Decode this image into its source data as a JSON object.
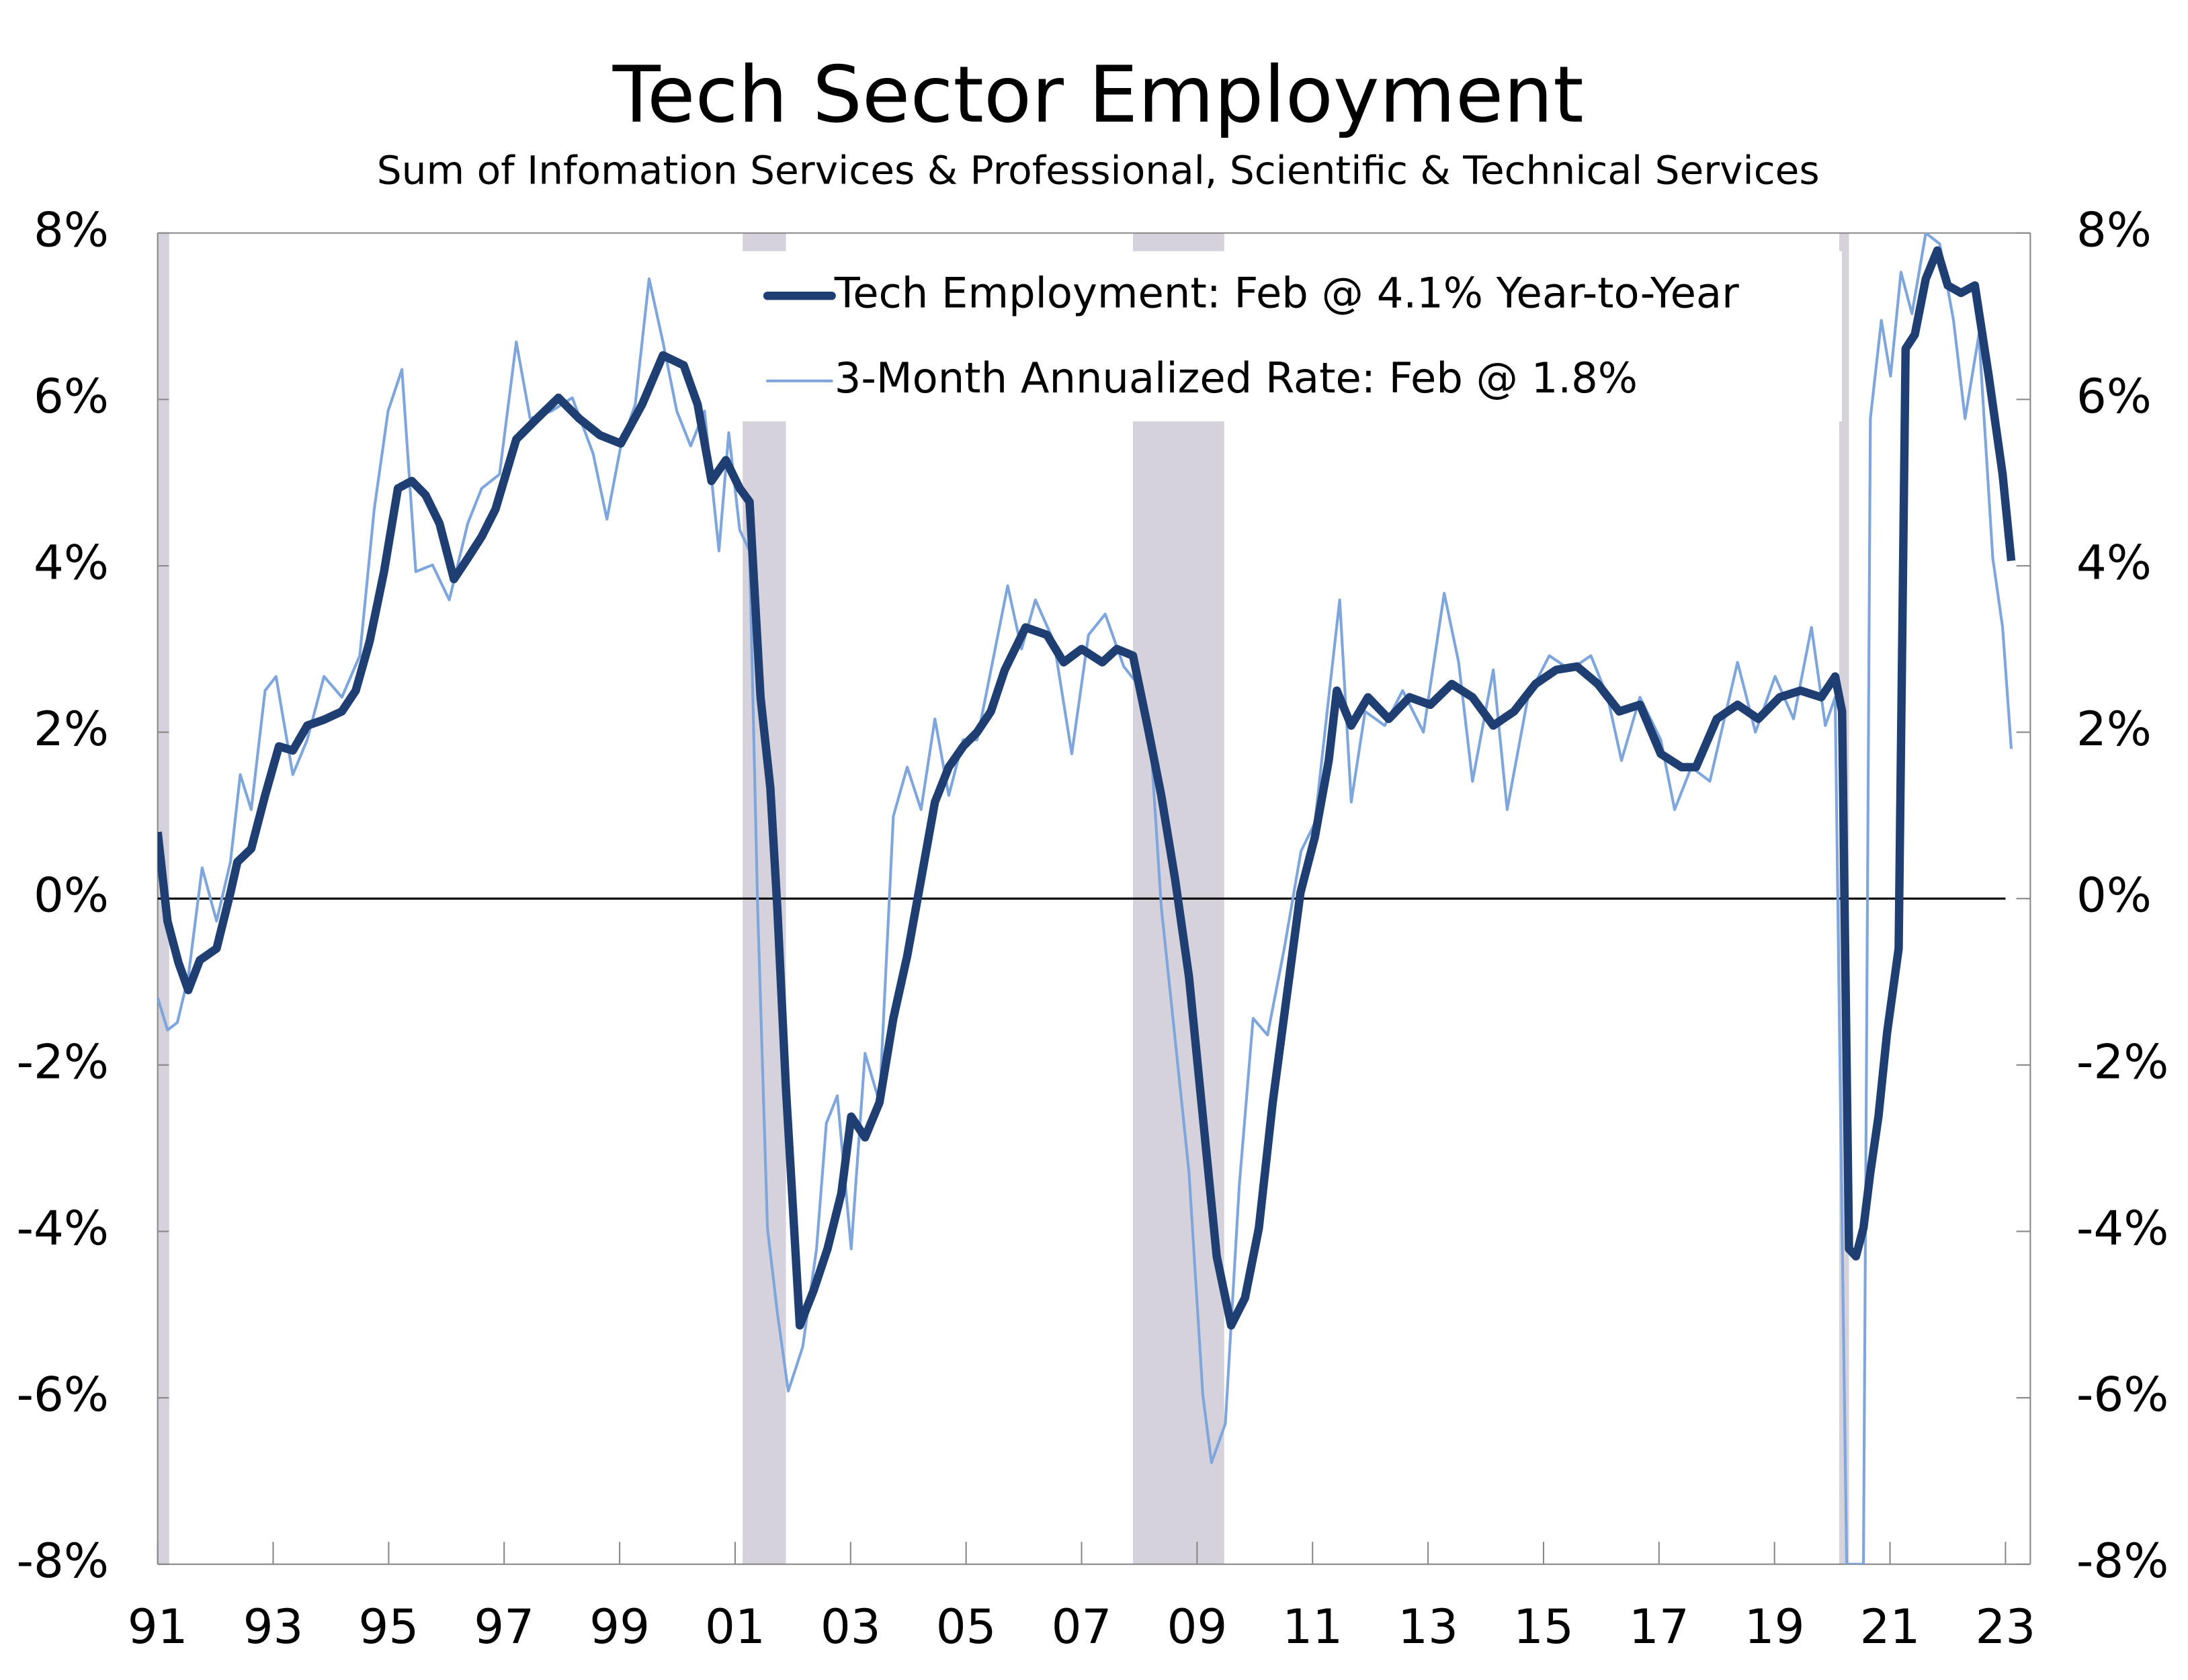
{
  "chart_data": {
    "type": "line",
    "title": "Tech Sector Employment",
    "subtitle": "Sum of Infomation Services & Professional, Scientific & Technical Services",
    "xlim": [
      1991,
      2023.43
    ],
    "xticks": [
      {
        "value": 1991,
        "label": "91"
      },
      {
        "value": 1993,
        "label": "93"
      },
      {
        "value": 1995,
        "label": "95"
      },
      {
        "value": 1997,
        "label": "97"
      },
      {
        "value": 1999,
        "label": "99"
      },
      {
        "value": 2001,
        "label": "01"
      },
      {
        "value": 2003,
        "label": "03"
      },
      {
        "value": 2005,
        "label": "05"
      },
      {
        "value": 2007,
        "label": "07"
      },
      {
        "value": 2009,
        "label": "09"
      },
      {
        "value": 2011,
        "label": "11"
      },
      {
        "value": 2013,
        "label": "13"
      },
      {
        "value": 2015,
        "label": "15"
      },
      {
        "value": 2017,
        "label": "17"
      },
      {
        "value": 2019,
        "label": "19"
      },
      {
        "value": 2021,
        "label": "21"
      },
      {
        "value": 2023,
        "label": "23"
      }
    ],
    "ylim": [
      -8,
      8
    ],
    "yticks": [
      {
        "value": -8,
        "label": "-8%"
      },
      {
        "value": -6,
        "label": "-6%"
      },
      {
        "value": -4,
        "label": "-4%"
      },
      {
        "value": -2,
        "label": "-2%"
      },
      {
        "value": 0,
        "label": "0%"
      },
      {
        "value": 2,
        "label": "2%"
      },
      {
        "value": 4,
        "label": "4%"
      },
      {
        "value": 6,
        "label": "6%"
      },
      {
        "value": 8,
        "label": "8%"
      }
    ],
    "y2lim": [
      -8,
      8
    ],
    "y2ticks": [
      {
        "value": -8,
        "label": "-8%"
      },
      {
        "value": -6,
        "label": "-6%"
      },
      {
        "value": -4,
        "label": "-4%"
      },
      {
        "value": -2,
        "label": "-2%"
      },
      {
        "value": 0,
        "label": "0%"
      },
      {
        "value": 2,
        "label": "2%"
      },
      {
        "value": 4,
        "label": "4%"
      },
      {
        "value": 6,
        "label": "6%"
      },
      {
        "value": 8,
        "label": "8%"
      }
    ],
    "recessions": [
      [
        1991.0,
        1991.2
      ],
      [
        2001.13,
        2001.88
      ],
      [
        2007.89,
        2009.47
      ],
      [
        2020.12,
        2020.29
      ]
    ],
    "recession_color": "#d6d2dc",
    "legend": "top-right",
    "series": [
      {
        "name": "Tech Employment: Feb @ 4.1% Year-to-Year",
        "color": "#1f3f73",
        "width": 6,
        "x": [
          1991.0,
          1991.17,
          1991.36,
          1991.53,
          1991.73,
          1992.02,
          1992.26,
          1992.38,
          1992.62,
          1992.86,
          1993.1,
          1993.34,
          1993.59,
          1993.88,
          1994.19,
          1994.43,
          1994.67,
          1994.92,
          1995.16,
          1995.4,
          1995.64,
          1995.88,
          1996.13,
          1996.37,
          1996.61,
          1996.85,
          1997.21,
          1997.57,
          1997.94,
          1998.3,
          1998.66,
          1999.02,
          1999.39,
          1999.75,
          2000.11,
          2000.35,
          2000.59,
          2000.84,
          2001.08,
          2001.25,
          2001.44,
          2001.61,
          2001.73,
          2001.88,
          2002.12,
          2002.36,
          2002.6,
          2002.84,
          2003.01,
          2003.25,
          2003.5,
          2003.74,
          2003.98,
          2004.22,
          2004.46,
          2004.7,
          2004.95,
          2005.19,
          2005.43,
          2005.67,
          2006.03,
          2006.4,
          2006.69,
          2007.0,
          2007.36,
          2007.61,
          2007.89,
          2008.14,
          2008.38,
          2008.62,
          2008.86,
          2009.1,
          2009.34,
          2009.59,
          2009.83,
          2010.07,
          2010.31,
          2010.55,
          2010.79,
          2011.04,
          2011.28,
          2011.42,
          2011.67,
          2011.96,
          2012.32,
          2012.68,
          2013.04,
          2013.41,
          2013.77,
          2014.13,
          2014.49,
          2014.86,
          2015.22,
          2015.58,
          2015.94,
          2016.31,
          2016.67,
          2017.03,
          2017.39,
          2017.64,
          2018.0,
          2018.36,
          2018.72,
          2019.09,
          2019.45,
          2019.81,
          2020.05,
          2020.17,
          2020.29,
          2020.41,
          2020.54,
          2020.66,
          2020.8,
          2020.95,
          2021.15,
          2021.27,
          2021.43,
          2021.62,
          2021.82,
          2022.0,
          2022.23,
          2022.47,
          2022.71,
          2022.95,
          2023.1
        ],
        "values": [
          0.8,
          -0.27,
          -0.77,
          -1.1,
          -0.74,
          -0.6,
          0.07,
          0.44,
          0.6,
          1.24,
          1.83,
          1.78,
          2.08,
          2.15,
          2.25,
          2.5,
          3.09,
          3.93,
          4.93,
          5.02,
          4.85,
          4.51,
          3.84,
          4.09,
          4.35,
          4.68,
          5.52,
          5.77,
          6.02,
          5.77,
          5.57,
          5.47,
          5.94,
          6.53,
          6.41,
          5.94,
          5.02,
          5.27,
          4.93,
          4.77,
          2.42,
          1.33,
          -0.1,
          -2.28,
          -5.13,
          -4.71,
          -4.21,
          -3.54,
          -2.62,
          -2.87,
          -2.45,
          -1.44,
          -0.69,
          0.23,
          1.16,
          1.58,
          1.83,
          2.0,
          2.25,
          2.75,
          3.26,
          3.17,
          2.84,
          3.0,
          2.84,
          3.0,
          2.92,
          2.08,
          1.24,
          0.23,
          -0.94,
          -2.62,
          -4.3,
          -5.13,
          -4.8,
          -3.96,
          -2.45,
          -1.19,
          0.07,
          0.74,
          1.66,
          2.5,
          2.08,
          2.42,
          2.16,
          2.42,
          2.33,
          2.58,
          2.42,
          2.08,
          2.25,
          2.58,
          2.75,
          2.79,
          2.58,
          2.25,
          2.33,
          1.74,
          1.58,
          1.58,
          2.16,
          2.33,
          2.16,
          2.42,
          2.5,
          2.42,
          2.67,
          2.25,
          -4.21,
          -4.3,
          -3.96,
          -3.29,
          -2.62,
          -1.61,
          -0.6,
          6.61,
          6.78,
          7.45,
          7.79,
          7.37,
          7.28,
          7.37,
          6.28,
          5.1,
          4.06
        ]
      },
      {
        "name": "3-Month Annualized Rate: Feb @ 1.8%",
        "color": "#7fa6dc",
        "width": 2,
        "x": [
          1991.0,
          1991.17,
          1991.34,
          1991.53,
          1991.77,
          1992.02,
          1992.26,
          1992.43,
          1992.62,
          1992.86,
          1993.05,
          1993.34,
          1993.59,
          1993.88,
          1994.19,
          1994.5,
          1994.75,
          1994.99,
          1995.23,
          1995.47,
          1995.76,
          1996.05,
          1996.37,
          1996.61,
          1996.92,
          1997.21,
          1997.45,
          1997.82,
          1998.18,
          1998.54,
          1998.78,
          1999.02,
          1999.27,
          1999.51,
          1999.75,
          1999.99,
          2000.23,
          2000.47,
          2000.72,
          2000.89,
          2001.08,
          2001.25,
          2001.39,
          2001.56,
          2001.73,
          2001.92,
          2002.17,
          2002.41,
          2002.58,
          2002.77,
          2003.01,
          2003.25,
          2003.5,
          2003.74,
          2003.98,
          2004.22,
          2004.46,
          2004.7,
          2004.95,
          2005.19,
          2005.48,
          2005.72,
          2005.96,
          2006.2,
          2006.52,
          2006.83,
          2007.12,
          2007.41,
          2007.73,
          2007.97,
          2008.21,
          2008.38,
          2008.62,
          2008.86,
          2009.1,
          2009.25,
          2009.49,
          2009.73,
          2009.97,
          2010.22,
          2010.51,
          2010.8,
          2011.04,
          2011.28,
          2011.47,
          2011.67,
          2011.91,
          2012.25,
          2012.56,
          2012.92,
          2013.28,
          2013.53,
          2013.77,
          2014.13,
          2014.37,
          2014.73,
          2015.1,
          2015.46,
          2015.82,
          2016.11,
          2016.35,
          2016.67,
          2017.03,
          2017.27,
          2017.56,
          2017.88,
          2018.36,
          2018.67,
          2019.01,
          2019.33,
          2019.64,
          2019.88,
          2020.05,
          2020.17,
          2020.25,
          2020.54,
          2020.66,
          2020.85,
          2021.01,
          2021.19,
          2021.38,
          2021.62,
          2021.86,
          2022.1,
          2022.3,
          2022.54,
          2022.78,
          2022.95,
          2023.1
        ],
        "values": [
          -1.19,
          -1.58,
          -1.49,
          -0.94,
          0.37,
          -0.27,
          0.44,
          1.49,
          1.07,
          2.5,
          2.67,
          1.49,
          1.91,
          2.67,
          2.42,
          2.92,
          4.68,
          5.86,
          6.36,
          3.93,
          4.01,
          3.59,
          4.51,
          4.93,
          5.1,
          6.69,
          5.77,
          5.86,
          6.02,
          5.35,
          4.56,
          5.44,
          5.94,
          7.45,
          6.69,
          5.86,
          5.44,
          5.86,
          4.18,
          5.6,
          4.43,
          4.18,
          -0.1,
          -3.96,
          -4.97,
          -5.92,
          -5.39,
          -4.21,
          -2.7,
          -2.37,
          -4.21,
          -1.86,
          -2.45,
          0.99,
          1.58,
          1.07,
          2.16,
          1.24,
          1.91,
          1.91,
          2.92,
          3.76,
          3.0,
          3.59,
          3.09,
          1.74,
          3.17,
          3.42,
          2.79,
          2.58,
          1.74,
          -0.1,
          -1.69,
          -3.29,
          -5.97,
          -6.78,
          -6.31,
          -3.46,
          -1.44,
          -1.64,
          -0.6,
          0.57,
          0.91,
          2.42,
          3.59,
          1.16,
          2.25,
          2.08,
          2.5,
          2.0,
          3.67,
          2.84,
          1.41,
          2.75,
          1.07,
          2.42,
          2.92,
          2.75,
          2.92,
          2.42,
          1.66,
          2.42,
          1.91,
          1.07,
          1.58,
          1.41,
          2.84,
          2.0,
          2.67,
          2.16,
          3.26,
          2.08,
          2.42,
          -3.96,
          -8,
          -8,
          5.77,
          6.95,
          6.28,
          7.53,
          7.03,
          8.0,
          7.87,
          6.95,
          5.77,
          6.78,
          4.09,
          3.26,
          1.8
        ]
      }
    ]
  }
}
